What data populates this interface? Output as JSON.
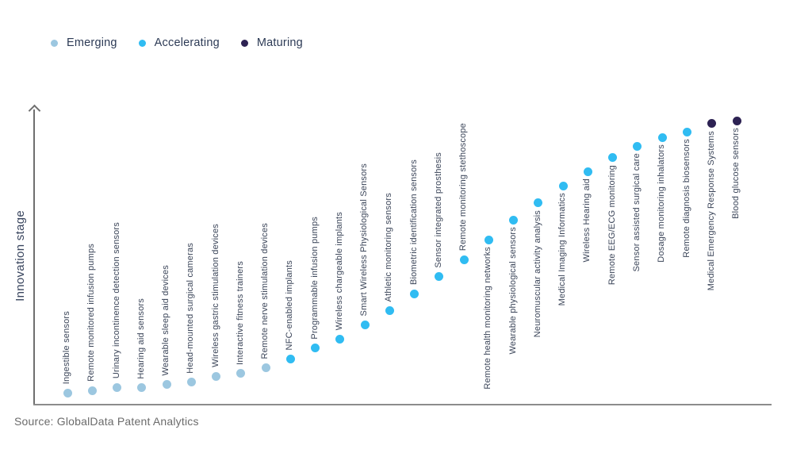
{
  "legend": [
    {
      "label": "Emerging",
      "color": "#9cc7e0"
    },
    {
      "label": "Accelerating",
      "color": "#30bcf2"
    },
    {
      "label": "Maturing",
      "color": "#2d2253"
    }
  ],
  "y_axis_label": "Innovation stage",
  "source": "Source: GlobalData Patent Analytics",
  "chart_data": {
    "type": "scatter",
    "title": "",
    "xlabel": "",
    "ylabel": "Innovation stage",
    "grid": false,
    "legend_position": "top-left",
    "y_axis_note": "no numeric ticks; level is relative position 0-100 above baseline",
    "stages": [
      "Emerging",
      "Accelerating",
      "Maturing"
    ],
    "points": [
      {
        "name": "Ingestible sensors",
        "stage": "Emerging",
        "level": 4
      },
      {
        "name": "Remote monitored infusion pumps",
        "stage": "Emerging",
        "level": 5
      },
      {
        "name": "Urinary incontinence detection sensors",
        "stage": "Emerging",
        "level": 6
      },
      {
        "name": "Hearing aid sensors",
        "stage": "Emerging",
        "level": 6
      },
      {
        "name": "Wearable sleep aid devices",
        "stage": "Emerging",
        "level": 7
      },
      {
        "name": "Head-mounted surgical cameras",
        "stage": "Emerging",
        "level": 8
      },
      {
        "name": "Wireless gastric stimulation devices",
        "stage": "Emerging",
        "level": 10
      },
      {
        "name": "Interactive fitness trainers",
        "stage": "Emerging",
        "level": 11
      },
      {
        "name": "Remote nerve stimulation devices",
        "stage": "Emerging",
        "level": 13
      },
      {
        "name": "NFC-enabled implants",
        "stage": "Accelerating",
        "level": 16
      },
      {
        "name": "Programmable infusion pumps",
        "stage": "Accelerating",
        "level": 20
      },
      {
        "name": "Wireless chargeable implants",
        "stage": "Accelerating",
        "level": 23
      },
      {
        "name": "Smart Wireless Physiological Sensors",
        "stage": "Accelerating",
        "level": 28
      },
      {
        "name": "Athletic monitoring sensors",
        "stage": "Accelerating",
        "level": 33
      },
      {
        "name": "Biometric identification sensors",
        "stage": "Accelerating",
        "level": 39
      },
      {
        "name": "Sensor integrated prosthesis",
        "stage": "Accelerating",
        "level": 45
      },
      {
        "name": "Remote monitoring stethoscope",
        "stage": "Accelerating",
        "level": 51
      },
      {
        "name": "Remote health monitoring networks",
        "stage": "Accelerating",
        "level": 58
      },
      {
        "name": "Wearable physiological sensors",
        "stage": "Accelerating",
        "level": 65
      },
      {
        "name": "Neuromuscular activity analysis",
        "stage": "Accelerating",
        "level": 71
      },
      {
        "name": "Medical Imaging Informatics",
        "stage": "Accelerating",
        "level": 77
      },
      {
        "name": "Wireless Hearing aid",
        "stage": "Accelerating",
        "level": 82
      },
      {
        "name": "Remote EEG/ECG monitoring",
        "stage": "Accelerating",
        "level": 87
      },
      {
        "name": "Sensor assisted surgical care",
        "stage": "Accelerating",
        "level": 91
      },
      {
        "name": "Dosage monitoring inhalators",
        "stage": "Accelerating",
        "level": 94
      },
      {
        "name": "Remote diagnosis biosensors",
        "stage": "Accelerating",
        "level": 96
      },
      {
        "name": "Medical Emergency Response Systems",
        "stage": "Maturing",
        "level": 99
      },
      {
        "name": "Blood glucose sensors",
        "stage": "Maturing",
        "level": 100
      }
    ]
  }
}
